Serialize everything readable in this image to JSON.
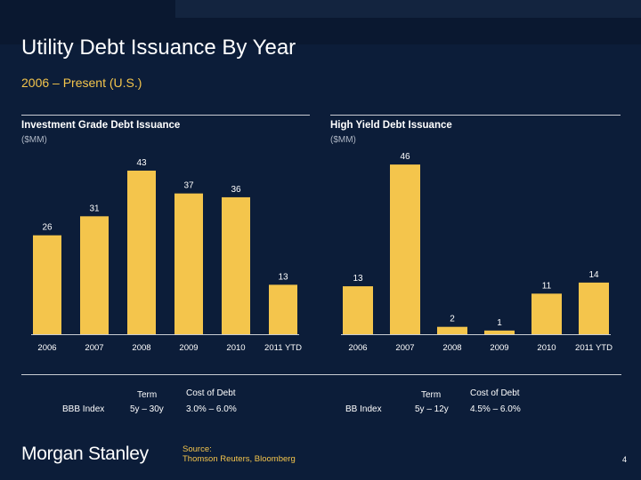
{
  "header": {
    "title": "Utility Debt Issuance By Year",
    "subtitle": "2006 – Present (U.S.)"
  },
  "colors": {
    "background": "#0c1d39",
    "bar": "#f4c54c",
    "accent_text": "#f4c54c"
  },
  "chart_data": [
    {
      "type": "bar",
      "title": "Investment Grade Debt Issuance",
      "ylabel": "($MM)",
      "categories": [
        "2006",
        "2007",
        "2008",
        "2009",
        "2010",
        "2011 YTD"
      ],
      "values": [
        26,
        31,
        43,
        37,
        36,
        13
      ],
      "ylim": [
        0,
        50
      ]
    },
    {
      "type": "bar",
      "title": "High Yield Debt Issuance",
      "ylabel": "($MM)",
      "categories": [
        "2006",
        "2007",
        "2008",
        "2009",
        "2010",
        "2011 YTD"
      ],
      "values": [
        13,
        46,
        2,
        1,
        11,
        14
      ],
      "ylim": [
        0,
        50
      ]
    }
  ],
  "tables": [
    {
      "index_name": "BBB Index",
      "term_header": "Term",
      "cost_header": "Cost of Debt",
      "term": "5y – 30y",
      "cost": "3.0% – 6.0%"
    },
    {
      "index_name": "BB Index",
      "term_header": "Term",
      "cost_header": "Cost of Debt",
      "term": "5y – 12y",
      "cost": "4.5% – 6.0%"
    }
  ],
  "footer": {
    "logo": "Morgan Stanley",
    "source_label": "Source:",
    "source_text": "Thomson Reuters, Bloomberg",
    "page_number": "4"
  }
}
